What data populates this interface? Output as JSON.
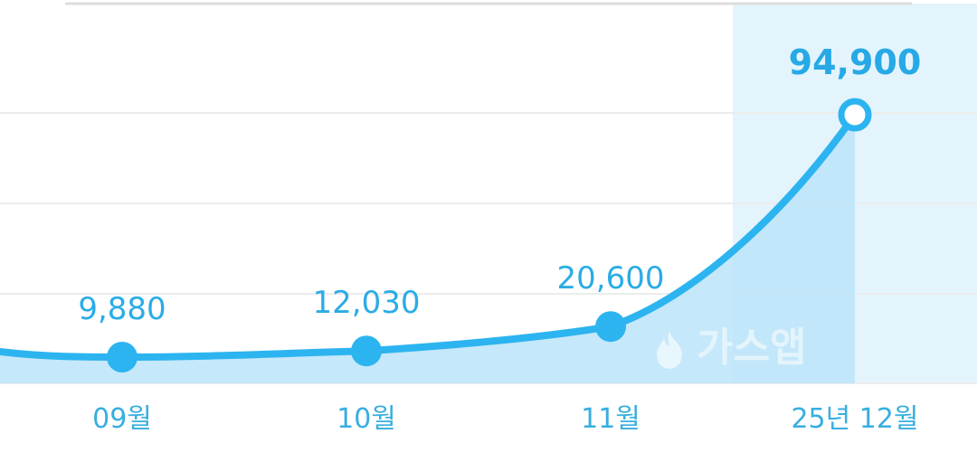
{
  "chart_data": {
    "type": "area",
    "categories": [
      "09월",
      "10월",
      "11월",
      "25년 12월"
    ],
    "values": [
      9880,
      12030,
      20600,
      94900
    ],
    "value_labels": [
      "9,880",
      "12,030",
      "20,600",
      "94,900"
    ],
    "highlighted_index": 3,
    "grid": true,
    "colors": {
      "line": "#2cb4f0",
      "fill": "#bfe6fa",
      "highlight_band": "#e3f4fd",
      "label": "#2aace6",
      "grid": "#ececec"
    }
  },
  "watermark": {
    "text": "가스앱",
    "icon": "flame-icon"
  }
}
